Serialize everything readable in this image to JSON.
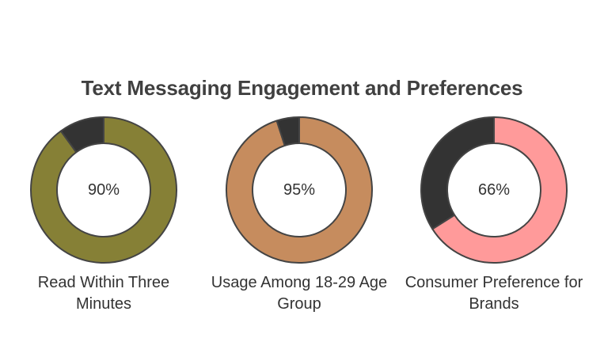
{
  "chart_data": {
    "type": "pie",
    "title": "Text Messaging Engagement and Preferences",
    "charts": [
      {
        "label": "Read Within Three Minutes",
        "value": 90,
        "display": "90%",
        "color": "#868036",
        "remainder_color": "#333333"
      },
      {
        "label": "Usage Among 18-29 Age Group",
        "value": 95,
        "display": "95%",
        "color": "#c68c5e",
        "remainder_color": "#333333"
      },
      {
        "label": "Consumer Preference for Brands",
        "value": 66,
        "display": "66%",
        "color": "#ff9a9a",
        "remainder_color": "#333333"
      }
    ]
  }
}
